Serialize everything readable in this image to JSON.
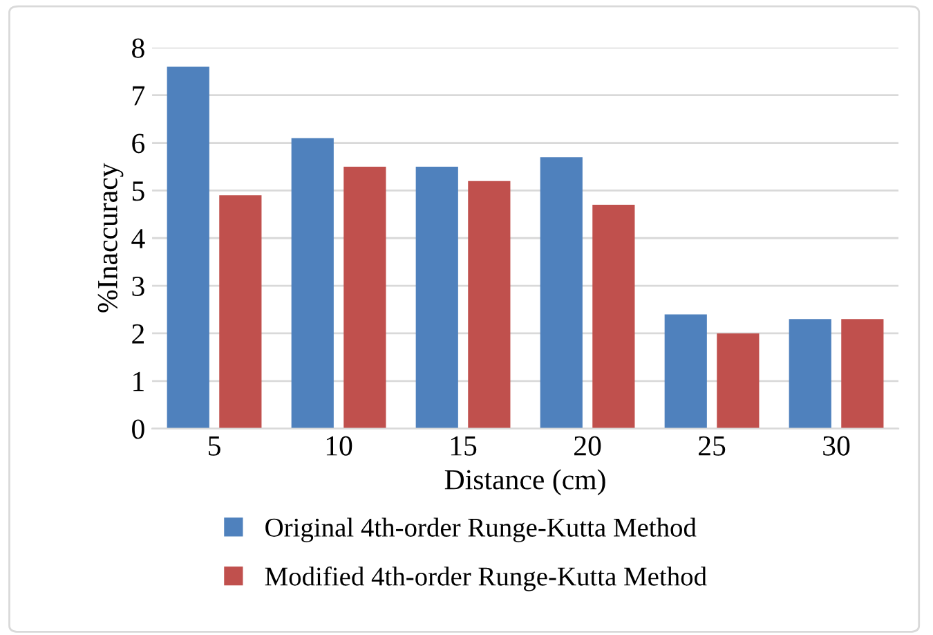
{
  "chart_data": {
    "type": "bar",
    "xlabel": "Distance (cm)",
    "ylabel": "%Inaccuracy",
    "categories": [
      "5",
      "10",
      "15",
      "20",
      "25",
      "30"
    ],
    "series": [
      {
        "name": "Original 4th-order Runge-Kutta Method",
        "color": "#4f81bd",
        "values": [
          7.6,
          6.1,
          5.5,
          5.7,
          2.4,
          2.3
        ]
      },
      {
        "name": "Modified 4th-order Runge-Kutta Method",
        "color": "#c0504d",
        "values": [
          4.9,
          5.5,
          5.2,
          4.7,
          2.0,
          2.3
        ]
      }
    ],
    "ylim": [
      0,
      8
    ],
    "yticks": [
      0,
      1,
      2,
      3,
      4,
      5,
      6,
      7,
      8
    ],
    "grid": "y",
    "legend": "bottom"
  }
}
